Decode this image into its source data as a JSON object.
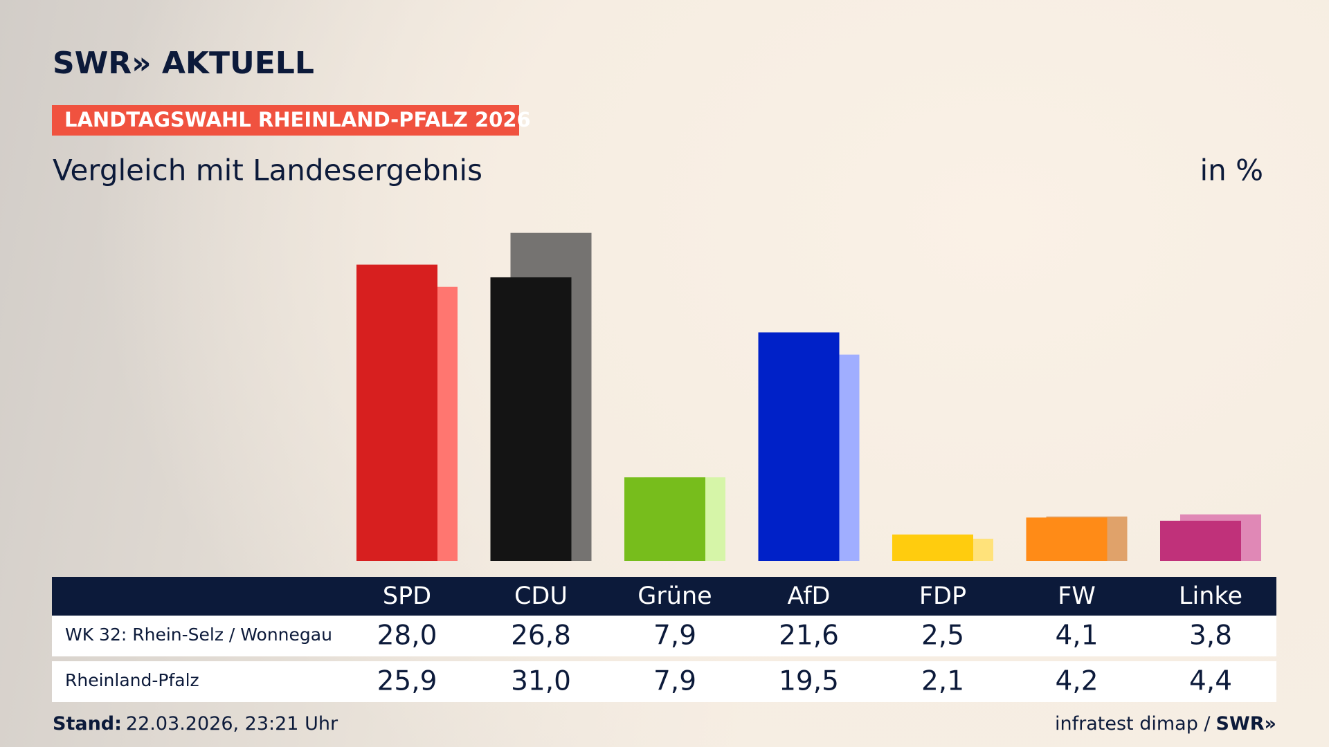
{
  "chart_data": {
    "type": "bar",
    "brand": "SWR» AKTUELL",
    "supertitle": "LANDTAGSWAHL RHEINLAND-PFALZ 2026",
    "title": "Vergleich mit Landesergebnis",
    "unit": "in %",
    "categories": [
      "SPD",
      "CDU",
      "Grüne",
      "AfD",
      "FDP",
      "FW",
      "Linke"
    ],
    "series": [
      {
        "name": "WK 32: Rhein-Selz / Wonnegau",
        "colors": [
          "#d71f1f",
          "#141414",
          "#77bd1c",
          "#0021c8",
          "#ffcc0e",
          "#ff8b17",
          "#c0317a"
        ],
        "values": [
          28.0,
          26.8,
          7.9,
          21.6,
          2.5,
          4.1,
          3.8
        ],
        "value_labels": [
          "28,0",
          "26,8",
          "7,9",
          "21,6",
          "2,5",
          "4,1",
          "3,8"
        ]
      },
      {
        "name": "Rheinland-Pfalz",
        "colors": [
          "#ff7670",
          "#757371",
          "#d6f5a8",
          "#a0aeff",
          "#ffe27a",
          "#e0a26a",
          "#e088b6"
        ],
        "values": [
          25.9,
          31.0,
          7.9,
          19.5,
          2.1,
          4.2,
          4.4
        ],
        "value_labels": [
          "25,9",
          "31,0",
          "7,9",
          "19,5",
          "2,1",
          "4,2",
          "4,4"
        ]
      }
    ],
    "footer": {
      "stand_label": "Stand:",
      "stand": "22.03.2026, 23:21 Uhr",
      "source": "infratest dimap /",
      "source_logo": "SWR»"
    }
  }
}
